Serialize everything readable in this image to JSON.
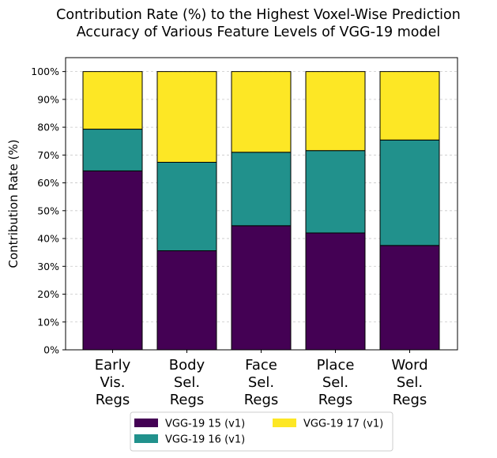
{
  "chart_data": {
    "type": "bar",
    "stacked": true,
    "title": "Contribution Rate (%) to the Highest Voxel-Wise Prediction\nAccuracy of Various Feature Levels of VGG-19  model",
    "ylabel": "Contribution Rate (%)",
    "xlabel": "",
    "ylim": [
      0,
      105
    ],
    "yticks": [
      "0%",
      "10%",
      "20%",
      "30%",
      "40%",
      "50%",
      "60%",
      "70%",
      "80%",
      "90%",
      "100%"
    ],
    "grid": "horizontal dashed",
    "legend_placement": "bottom-center",
    "categories": [
      "Early\nVis.\nRegs",
      "Body\nSel.\nRegs",
      "Face\nSel.\nRegs",
      "Place\nSel.\nRegs",
      "Word\nSel.\nRegs"
    ],
    "series": [
      {
        "name": "VGG-19 15 (v1)",
        "color": "#440154",
        "values": [
          64.3,
          35.6,
          44.6,
          42.0,
          37.5
        ]
      },
      {
        "name": "VGG-19 16 (v1)",
        "color": "#21918c",
        "values": [
          15.0,
          31.8,
          26.4,
          29.6,
          37.9
        ]
      },
      {
        "name": "VGG-19 17 (v1)",
        "color": "#fde725",
        "values": [
          20.7,
          32.6,
          29.0,
          28.4,
          24.6
        ]
      }
    ]
  }
}
